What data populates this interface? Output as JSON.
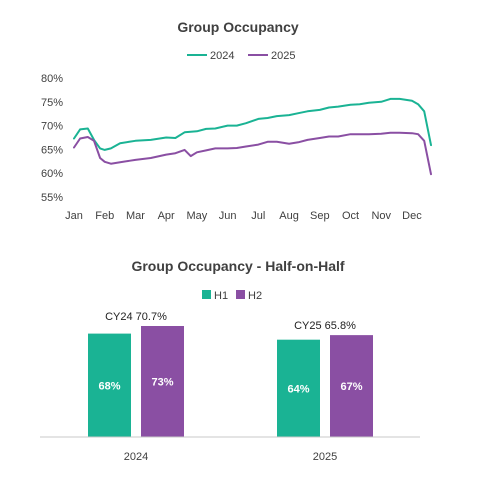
{
  "chart_data": [
    {
      "type": "line",
      "title": "Group Occupancy",
      "xlabel": "",
      "ylabel": "",
      "ylim": [
        55,
        80
      ],
      "yticks": [
        "55%",
        "60%",
        "65%",
        "70%",
        "75%",
        "80%"
      ],
      "ytick_values": [
        55,
        60,
        65,
        70,
        75,
        80
      ],
      "xticks": [
        "Jan",
        "Feb",
        "Mar",
        "Apr",
        "May",
        "Jun",
        "Jul",
        "Aug",
        "Sep",
        "Oct",
        "Nov",
        "Dec"
      ],
      "grid": false,
      "legend": "top-center",
      "series": [
        {
          "name": "2024",
          "color": "#1ab394",
          "x": [
            0.0,
            0.2,
            0.45,
            0.65,
            0.85,
            1.0,
            1.2,
            1.5,
            1.8,
            2.0,
            2.5,
            3.0,
            3.3,
            3.6,
            4.0,
            4.3,
            4.6,
            5.0,
            5.3,
            5.6,
            6.0,
            6.3,
            6.6,
            7.0,
            7.3,
            7.6,
            8.0,
            8.3,
            8.6,
            9.0,
            9.3,
            9.6,
            10.0,
            10.3,
            10.6,
            11.0,
            11.2,
            11.4,
            11.62
          ],
          "values": [
            67.3,
            69.2,
            69.4,
            67.0,
            65.2,
            64.9,
            65.2,
            66.3,
            66.6,
            66.8,
            67.0,
            67.5,
            67.4,
            68.6,
            68.8,
            69.3,
            69.4,
            70.0,
            70.0,
            70.5,
            71.4,
            71.6,
            72.0,
            72.2,
            72.6,
            73.0,
            73.3,
            73.8,
            74.0,
            74.4,
            74.5,
            74.8,
            75.0,
            75.6,
            75.6,
            75.2,
            74.5,
            73.0,
            65.9
          ]
        },
        {
          "name": "2025",
          "color": "#8a4fa3",
          "x": [
            0.0,
            0.2,
            0.45,
            0.65,
            0.85,
            1.0,
            1.2,
            1.5,
            1.8,
            2.0,
            2.5,
            3.0,
            3.3,
            3.6,
            3.8,
            4.0,
            4.3,
            4.6,
            5.0,
            5.3,
            5.6,
            6.0,
            6.3,
            6.6,
            7.0,
            7.3,
            7.6,
            8.0,
            8.3,
            8.6,
            9.0,
            9.3,
            9.6,
            10.0,
            10.3,
            10.6,
            11.0,
            11.2,
            11.4,
            11.62
          ],
          "values": [
            65.4,
            67.3,
            67.6,
            66.8,
            63.2,
            62.4,
            62.0,
            62.3,
            62.6,
            62.8,
            63.2,
            63.9,
            64.2,
            64.9,
            63.6,
            64.4,
            64.8,
            65.2,
            65.2,
            65.3,
            65.6,
            66.0,
            66.6,
            66.6,
            66.2,
            66.5,
            67.0,
            67.4,
            67.7,
            67.7,
            68.2,
            68.2,
            68.2,
            68.3,
            68.5,
            68.5,
            68.4,
            68.2,
            66.8,
            59.8
          ]
        }
      ]
    },
    {
      "type": "bar",
      "title": "Group Occupancy - Half-on-Half",
      "xlabel": "",
      "ylabel": "",
      "ylim": [
        0,
        80
      ],
      "categories": [
        "2024",
        "2025"
      ],
      "legend": "top-center",
      "series": [
        {
          "name": "H1",
          "color": "#1ab394",
          "values": [
            68,
            64
          ],
          "labels": [
            "68%",
            "64%"
          ]
        },
        {
          "name": "H2",
          "color": "#8a4fa3",
          "values": [
            73,
            67
          ],
          "labels": [
            "73%",
            "67%"
          ]
        }
      ],
      "annotations": [
        "CY24 70.7%",
        "CY25 65.8%"
      ]
    }
  ]
}
